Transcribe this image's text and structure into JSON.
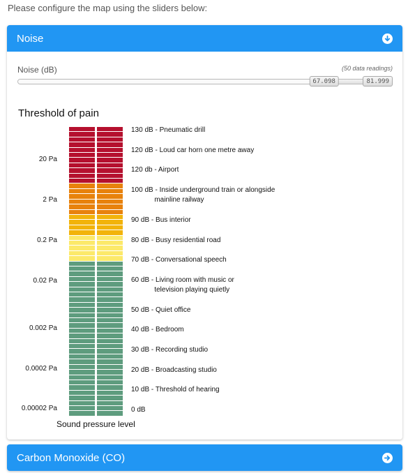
{
  "intro": "Please configure the map using the sliders below:",
  "noise_panel": {
    "title": "Noise",
    "header_icon": "arrow-down-circle-icon",
    "slider": {
      "label": "Noise (dB)",
      "readings": "(50 data readings)",
      "value_text": "67.098",
      "max_text": "81.999",
      "value_fraction": 0.82
    },
    "diagram": {
      "title": "Threshold of pain",
      "pressure_labels": [
        "20 Pa",
        "2 Pa",
        "0.2 Pa",
        "0.02 Pa",
        "0.002 Pa",
        "0.0002 Pa",
        "0.00002 Pa"
      ],
      "db_labels": [
        "130 dB - Pneumatic drill",
        "120 dB - Loud car horn one metre away",
        "120 db - Airport",
        "100 dB - Inside underground train or alongside\n            mainline railway",
        "90 dB - Bus interior",
        "80 dB - Busy residential road",
        "70 dB - Conversational speech",
        "60 dB - Living room with music or\n            television playing quietly",
        "50 dB - Quiet office",
        "40 dB - Bedroom",
        "30 dB - Recording studio",
        "20 dB - Broadcasting studio",
        "10 dB - Threshold of hearing",
        "0 dB"
      ],
      "axis_label": "Sound pressure level",
      "colors": {
        "red": "#b5102e",
        "orange": "#e8820c",
        "amber": "#f2b30a",
        "yellow": "#fce96a",
        "green": "#5e9c7e"
      }
    }
  },
  "co_panel": {
    "title": "Carbon Monoxide (CO)",
    "header_icon": "arrow-right-circle-icon"
  },
  "colors": {
    "header_blue": "#2196f3"
  }
}
